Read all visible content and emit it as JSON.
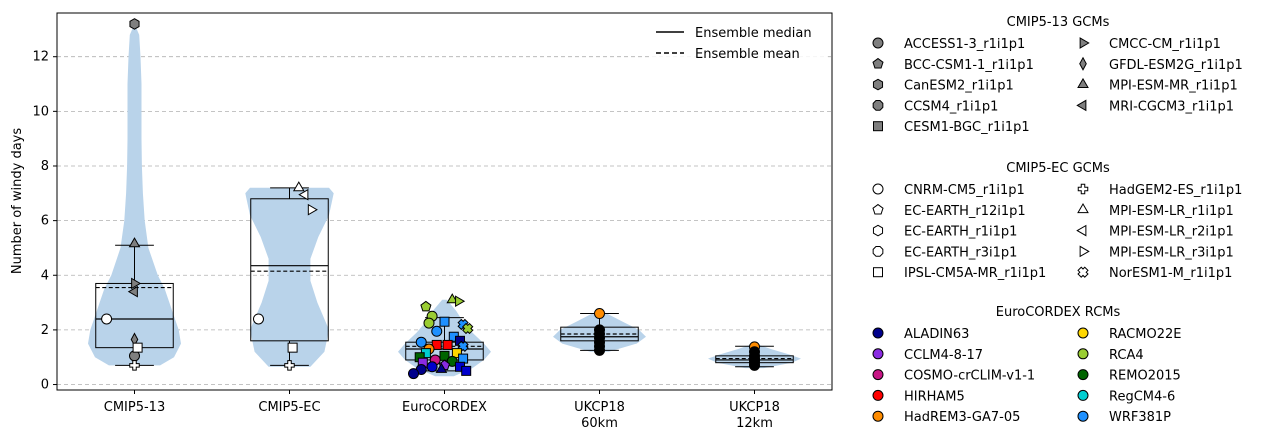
{
  "chart_data": {
    "type": "box-violin",
    "ylabel": "Number of windy days",
    "ylim": [
      -0.2,
      13.6
    ],
    "yticks": [
      0,
      2,
      4,
      6,
      8,
      10,
      12
    ],
    "grid": "y-dashed",
    "categories": [
      "CMIP5-13",
      "CMIP5-EC",
      "EuroCORDEX",
      "UKCP18\n60km",
      "UKCP18\n12km"
    ],
    "stats": [
      {
        "min": 0.7,
        "q1": 1.35,
        "median": 2.4,
        "mean": 3.55,
        "q3": 3.7,
        "max": 5.1
      },
      {
        "min": 0.7,
        "q1": 1.6,
        "median": 4.35,
        "mean": 4.15,
        "q3": 6.8,
        "max": 7.2
      },
      {
        "min": 0.5,
        "q1": 0.9,
        "median": 1.3,
        "mean": 1.4,
        "q3": 1.55,
        "max": 2.45
      },
      {
        "min": 1.25,
        "q1": 1.6,
        "median": 1.75,
        "mean": 1.85,
        "q3": 2.1,
        "max": 2.6
      },
      {
        "min": 0.65,
        "q1": 0.8,
        "median": 0.9,
        "mean": 0.95,
        "q3": 1.05,
        "max": 1.4
      }
    ],
    "violins": [
      {
        "range": [
          0.7,
          13.2
        ],
        "profile": [
          [
            0.7,
            0.55
          ],
          [
            1.0,
            0.85
          ],
          [
            1.5,
            1.0
          ],
          [
            2.0,
            0.95
          ],
          [
            2.5,
            0.85
          ],
          [
            3.0,
            0.75
          ],
          [
            3.5,
            0.65
          ],
          [
            4.0,
            0.5
          ],
          [
            5.0,
            0.3
          ],
          [
            6.0,
            0.22
          ],
          [
            7.0,
            0.18
          ],
          [
            8.0,
            0.16
          ],
          [
            9.0,
            0.15
          ],
          [
            10.0,
            0.15
          ],
          [
            11.0,
            0.15
          ],
          [
            12.0,
            0.13
          ],
          [
            12.8,
            0.1
          ],
          [
            13.2,
            0.0
          ]
        ]
      },
      {
        "range": [
          0.65,
          7.2
        ],
        "profile": [
          [
            0.65,
            0.45
          ],
          [
            1.2,
            0.75
          ],
          [
            2.0,
            0.85
          ],
          [
            3.0,
            0.6
          ],
          [
            3.8,
            0.45
          ],
          [
            4.6,
            0.45
          ],
          [
            5.4,
            0.62
          ],
          [
            6.2,
            0.85
          ],
          [
            7.0,
            0.95
          ],
          [
            7.2,
            0.85
          ]
        ]
      },
      {
        "range": [
          0.3,
          3.1
        ],
        "profile": [
          [
            0.3,
            0.2
          ],
          [
            0.6,
            0.6
          ],
          [
            0.9,
            0.85
          ],
          [
            1.2,
            1.0
          ],
          [
            1.5,
            0.85
          ],
          [
            1.9,
            0.6
          ],
          [
            2.3,
            0.4
          ],
          [
            2.7,
            0.25
          ],
          [
            3.1,
            0.05
          ]
        ]
      },
      {
        "range": [
          1.2,
          2.65
        ],
        "profile": [
          [
            1.2,
            0.2
          ],
          [
            1.5,
            0.8
          ],
          [
            1.75,
            1.0
          ],
          [
            2.0,
            0.85
          ],
          [
            2.3,
            0.5
          ],
          [
            2.65,
            0.1
          ]
        ]
      },
      {
        "range": [
          0.6,
          1.45
        ],
        "profile": [
          [
            0.6,
            0.2
          ],
          [
            0.8,
            0.8
          ],
          [
            0.95,
            1.0
          ],
          [
            1.1,
            0.75
          ],
          [
            1.3,
            0.35
          ],
          [
            1.45,
            0.1
          ]
        ]
      }
    ],
    "points": [
      {
        "cat": 0,
        "dx": 0.0,
        "y": 1.05,
        "marker": "circle",
        "fill": "#7f7f7f"
      },
      {
        "cat": 0,
        "dx": 0.0,
        "y": 1.65,
        "marker": "diamond",
        "fill": "#7f7f7f"
      },
      {
        "cat": 0,
        "dx": 0.0,
        "y": 13.2,
        "marker": "hexagon",
        "fill": "#7f7f7f"
      },
      {
        "cat": 0,
        "dx": 0.0,
        "y": 5.15,
        "marker": "triangle-up",
        "fill": "#7f7f7f"
      },
      {
        "cat": 0,
        "dx": 0.0,
        "y": 3.7,
        "marker": "triangle-right",
        "fill": "#7f7f7f"
      },
      {
        "cat": 0,
        "dx": 0.0,
        "y": 3.4,
        "marker": "triangle-left",
        "fill": "#7f7f7f"
      },
      {
        "cat": 0,
        "dx": -0.18,
        "y": 2.4,
        "marker": "circle",
        "fill": "#ffffff"
      },
      {
        "cat": 0,
        "dx": 0.02,
        "y": 1.35,
        "marker": "square",
        "fill": "#ffffff"
      },
      {
        "cat": 0,
        "dx": 0.0,
        "y": 0.7,
        "marker": "plus",
        "fill": "#ffffff"
      },
      {
        "cat": 1,
        "dx": -0.2,
        "y": 2.4,
        "marker": "circle",
        "fill": "#ffffff"
      },
      {
        "cat": 1,
        "dx": 0.02,
        "y": 1.35,
        "marker": "square",
        "fill": "#ffffff"
      },
      {
        "cat": 1,
        "dx": 0.0,
        "y": 0.7,
        "marker": "plus",
        "fill": "#ffffff"
      },
      {
        "cat": 1,
        "dx": 0.06,
        "y": 7.2,
        "marker": "triangle-up",
        "fill": "#ffffff"
      },
      {
        "cat": 1,
        "dx": 0.1,
        "y": 6.95,
        "marker": "triangle-left",
        "fill": "#ffffff"
      },
      {
        "cat": 1,
        "dx": 0.14,
        "y": 6.4,
        "marker": "triangle-right",
        "fill": "#ffffff"
      },
      {
        "cat": 2,
        "dx": -0.12,
        "y": 2.85,
        "marker": "pentagon",
        "fill": "#9acd32"
      },
      {
        "cat": 2,
        "dx": -0.08,
        "y": 2.5,
        "marker": "circle",
        "fill": "#9acd32"
      },
      {
        "cat": 2,
        "dx": -0.1,
        "y": 2.25,
        "marker": "circle",
        "fill": "#9acd32"
      },
      {
        "cat": 2,
        "dx": 0.05,
        "y": 3.1,
        "marker": "triangle-up",
        "fill": "#9acd32"
      },
      {
        "cat": 2,
        "dx": 0.09,
        "y": 3.05,
        "marker": "triangle-right",
        "fill": "#9acd32"
      },
      {
        "cat": 2,
        "dx": 0.0,
        "y": 2.3,
        "marker": "square",
        "fill": "#1e90ff"
      },
      {
        "cat": 2,
        "dx": 0.12,
        "y": 2.2,
        "marker": "cross",
        "fill": "#1e90ff"
      },
      {
        "cat": 2,
        "dx": 0.15,
        "y": 2.05,
        "marker": "cross",
        "fill": "#9acd32"
      },
      {
        "cat": 2,
        "dx": -0.05,
        "y": 1.95,
        "marker": "circle",
        "fill": "#1e90ff"
      },
      {
        "cat": 2,
        "dx": 0.06,
        "y": 1.75,
        "marker": "square",
        "fill": "#1e90ff"
      },
      {
        "cat": 2,
        "dx": 0.1,
        "y": 1.6,
        "marker": "square",
        "fill": "#00008b"
      },
      {
        "cat": 2,
        "dx": -0.15,
        "y": 1.55,
        "marker": "circle",
        "fill": "#1e90ff"
      },
      {
        "cat": 2,
        "dx": -0.05,
        "y": 1.45,
        "marker": "square",
        "fill": "#ff0000"
      },
      {
        "cat": 2,
        "dx": 0.02,
        "y": 1.45,
        "marker": "square",
        "fill": "#ff0000"
      },
      {
        "cat": 2,
        "dx": 0.12,
        "y": 1.4,
        "marker": "cross",
        "fill": "#1e90ff"
      },
      {
        "cat": 2,
        "dx": -0.1,
        "y": 1.3,
        "marker": "circle",
        "fill": "#ff8c00"
      },
      {
        "cat": 2,
        "dx": -0.12,
        "y": 1.15,
        "marker": "square",
        "fill": "#00ced1"
      },
      {
        "cat": 2,
        "dx": 0.08,
        "y": 1.15,
        "marker": "square",
        "fill": "#ffd700"
      },
      {
        "cat": 2,
        "dx": 0.0,
        "y": 1.05,
        "marker": "square",
        "fill": "#006400"
      },
      {
        "cat": 2,
        "dx": -0.16,
        "y": 1.0,
        "marker": "square",
        "fill": "#006400"
      },
      {
        "cat": 2,
        "dx": 0.12,
        "y": 0.95,
        "marker": "square",
        "fill": "#1e90ff"
      },
      {
        "cat": 2,
        "dx": -0.06,
        "y": 0.9,
        "marker": "circle",
        "fill": "#c71585"
      },
      {
        "cat": 2,
        "dx": 0.05,
        "y": 0.85,
        "marker": "circle",
        "fill": "#006400"
      },
      {
        "cat": 2,
        "dx": -0.14,
        "y": 0.8,
        "marker": "square",
        "fill": "#8a2be2"
      },
      {
        "cat": 2,
        "dx": 0.0,
        "y": 0.7,
        "marker": "pentagon",
        "fill": "#8a2be2"
      },
      {
        "cat": 2,
        "dx": -0.08,
        "y": 0.65,
        "marker": "circle",
        "fill": "#0000cd"
      },
      {
        "cat": 2,
        "dx": 0.1,
        "y": 0.65,
        "marker": "square",
        "fill": "#0000cd"
      },
      {
        "cat": 2,
        "dx": -0.15,
        "y": 0.55,
        "marker": "circle",
        "fill": "#00008b"
      },
      {
        "cat": 2,
        "dx": -0.02,
        "y": 0.55,
        "marker": "triangle-up",
        "fill": "#00008b"
      },
      {
        "cat": 2,
        "dx": 0.14,
        "y": 0.5,
        "marker": "square",
        "fill": "#0000cd"
      },
      {
        "cat": 2,
        "dx": -0.2,
        "y": 0.4,
        "marker": "circle",
        "fill": "#00008b"
      },
      {
        "cat": 3,
        "dx": 0.0,
        "y": 2.6,
        "marker": "circle",
        "fill": "#ff8c00"
      },
      {
        "cat": 3,
        "dx": 0.0,
        "y": 2.0,
        "marker": "circle",
        "fill": "#000000"
      },
      {
        "cat": 3,
        "dx": 0.0,
        "y": 1.85,
        "marker": "circle",
        "fill": "#000000"
      },
      {
        "cat": 3,
        "dx": 0.0,
        "y": 1.7,
        "marker": "circle",
        "fill": "#000000"
      },
      {
        "cat": 3,
        "dx": 0.0,
        "y": 1.55,
        "marker": "circle",
        "fill": "#000000"
      },
      {
        "cat": 3,
        "dx": 0.0,
        "y": 1.4,
        "marker": "circle",
        "fill": "#000000"
      },
      {
        "cat": 3,
        "dx": 0.0,
        "y": 1.25,
        "marker": "circle",
        "fill": "#000000"
      },
      {
        "cat": 4,
        "dx": 0.0,
        "y": 1.38,
        "marker": "circle",
        "fill": "#ff8c00"
      },
      {
        "cat": 4,
        "dx": 0.0,
        "y": 1.2,
        "marker": "circle",
        "fill": "#000000"
      },
      {
        "cat": 4,
        "dx": 0.0,
        "y": 1.05,
        "marker": "circle",
        "fill": "#000000"
      },
      {
        "cat": 4,
        "dx": 0.0,
        "y": 0.95,
        "marker": "circle",
        "fill": "#000000"
      },
      {
        "cat": 4,
        "dx": 0.0,
        "y": 0.88,
        "marker": "circle",
        "fill": "#000000"
      },
      {
        "cat": 4,
        "dx": 0.0,
        "y": 0.8,
        "marker": "circle",
        "fill": "#000000"
      },
      {
        "cat": 4,
        "dx": 0.0,
        "y": 0.7,
        "marker": "circle",
        "fill": "#000000"
      }
    ],
    "line_legend": [
      {
        "label": "Ensemble median",
        "style": "solid"
      },
      {
        "label": "Ensemble mean",
        "style": "dashed"
      }
    ],
    "legend_groups": [
      {
        "title": "CMIP5-13 GCMs",
        "items": [
          {
            "label": "ACCESS1-3_r1i1p1",
            "marker": "circle",
            "fill": "#7f7f7f"
          },
          {
            "label": "BCC-CSM1-1_r1i1p1",
            "marker": "pentagon",
            "fill": "#7f7f7f"
          },
          {
            "label": "CanESM2_r1i1p1",
            "marker": "hexagon",
            "fill": "#7f7f7f"
          },
          {
            "label": "CCSM4_r1i1p1",
            "marker": "octagon",
            "fill": "#7f7f7f"
          },
          {
            "label": "CESM1-BGC_r1i1p1",
            "marker": "square",
            "fill": "#7f7f7f"
          },
          {
            "label": "CMCC-CM_r1i1p1",
            "marker": "triangle-right",
            "fill": "#7f7f7f"
          },
          {
            "label": "GFDL-ESM2G_r1i1p1",
            "marker": "diamond",
            "fill": "#7f7f7f"
          },
          {
            "label": "MPI-ESM-MR_r1i1p1",
            "marker": "triangle-up",
            "fill": "#7f7f7f"
          },
          {
            "label": "MRI-CGCM3_r1i1p1",
            "marker": "triangle-left",
            "fill": "#7f7f7f"
          }
        ]
      },
      {
        "title": "CMIP5-EC GCMs",
        "items": [
          {
            "label": "CNRM-CM5_r1i1p1",
            "marker": "circle",
            "fill": "#ffffff"
          },
          {
            "label": "EC-EARTH_r12i1p1",
            "marker": "pentagon",
            "fill": "#ffffff"
          },
          {
            "label": "EC-EARTH_r1i1p1",
            "marker": "hexagon",
            "fill": "#ffffff"
          },
          {
            "label": "EC-EARTH_r3i1p1",
            "marker": "octagon",
            "fill": "#ffffff"
          },
          {
            "label": "IPSL-CM5A-MR_r1i1p1",
            "marker": "square",
            "fill": "#ffffff"
          },
          {
            "label": "HadGEM2-ES_r1i1p1",
            "marker": "plus",
            "fill": "#ffffff"
          },
          {
            "label": "MPI-ESM-LR_r1i1p1",
            "marker": "triangle-up",
            "fill": "#ffffff"
          },
          {
            "label": "MPI-ESM-LR_r2i1p1",
            "marker": "triangle-left",
            "fill": "#ffffff"
          },
          {
            "label": "MPI-ESM-LR_r3i1p1",
            "marker": "triangle-right",
            "fill": "#ffffff"
          },
          {
            "label": "NorESM1-M_r1i1p1",
            "marker": "cross",
            "fill": "#ffffff"
          }
        ]
      },
      {
        "title": "EuroCORDEX RCMs",
        "items": [
          {
            "label": "ALADIN63",
            "marker": "circle",
            "fill": "#00008b"
          },
          {
            "label": "CCLM4-8-17",
            "marker": "circle",
            "fill": "#8a2be2"
          },
          {
            "label": "COSMO-crCLIM-v1-1",
            "marker": "circle",
            "fill": "#c71585"
          },
          {
            "label": "HIRHAM5",
            "marker": "circle",
            "fill": "#ff0000"
          },
          {
            "label": "HadREM3-GA7-05",
            "marker": "circle",
            "fill": "#ff8c00"
          },
          {
            "label": "RACMO22E",
            "marker": "circle",
            "fill": "#ffd700"
          },
          {
            "label": "RCA4",
            "marker": "circle",
            "fill": "#9acd32"
          },
          {
            "label": "REMO2015",
            "marker": "circle",
            "fill": "#006400"
          },
          {
            "label": "RegCM4-6",
            "marker": "circle",
            "fill": "#00ced1"
          },
          {
            "label": "WRF381P",
            "marker": "circle",
            "fill": "#1e90ff"
          }
        ]
      }
    ],
    "colors": {
      "violin": "#b9d3ea",
      "grid": "#b0b0b0"
    }
  }
}
